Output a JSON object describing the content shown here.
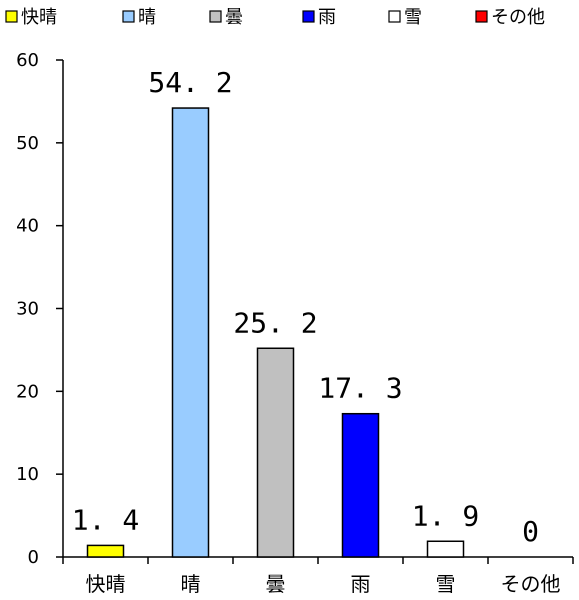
{
  "chart_data": {
    "type": "bar",
    "categories": [
      "快晴",
      "晴",
      "曇",
      "雨",
      "雪",
      "その他"
    ],
    "values": [
      1.4,
      54.2,
      25.2,
      17.3,
      1.9,
      0
    ],
    "data_labels": [
      "1. 4",
      "54. 2",
      "25. 2",
      "17. 3",
      "1. 9",
      "0"
    ],
    "colors": [
      "#ffff00",
      "#99ccff",
      "#c0c0c0",
      "#0000ff",
      "#ffffff",
      "#ff0000"
    ],
    "legend": [
      "快晴",
      "晴",
      "曇",
      "雨",
      "雪",
      "その他"
    ],
    "legend_position": "top",
    "ylim": [
      0,
      60
    ],
    "yticks": [
      0,
      10,
      20,
      30,
      40,
      50,
      60
    ],
    "grid": false,
    "title": "",
    "xlabel": "",
    "ylabel": ""
  }
}
